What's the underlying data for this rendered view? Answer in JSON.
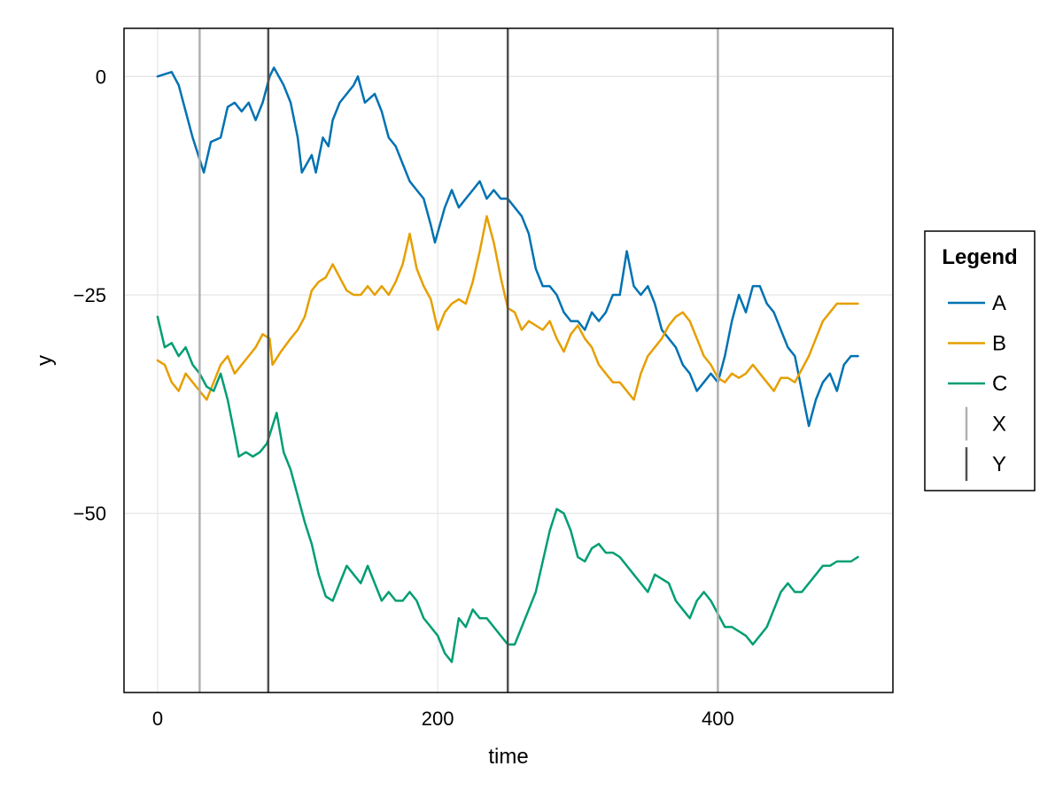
{
  "chart_data": {
    "type": "line",
    "xlabel": "time",
    "ylabel": "y",
    "xlim": [
      -24,
      525
    ],
    "ylim": [
      -70.5,
      5.5
    ],
    "xticks": [
      0,
      200,
      400
    ],
    "yticks": [
      0,
      -25,
      -50
    ],
    "ytick_labels": [
      "0",
      "−25",
      "−50"
    ],
    "grid": true,
    "legend": {
      "title": "Legend",
      "placement": "right",
      "entries": [
        "A",
        "B",
        "C",
        "X",
        "Y"
      ]
    },
    "series": [
      {
        "name": "A",
        "color": "#0072B2",
        "points": [
          [
            0,
            0
          ],
          [
            10,
            0.5
          ],
          [
            15,
            -1
          ],
          [
            20,
            -4
          ],
          [
            25,
            -7
          ],
          [
            30,
            -9.5
          ],
          [
            33,
            -11
          ],
          [
            38,
            -7.5
          ],
          [
            45,
            -7
          ],
          [
            50,
            -3.5
          ],
          [
            55,
            -3
          ],
          [
            60,
            -4
          ],
          [
            65,
            -3
          ],
          [
            70,
            -5
          ],
          [
            75,
            -3
          ],
          [
            80,
            0
          ],
          [
            83,
            1
          ],
          [
            90,
            -1
          ],
          [
            95,
            -3
          ],
          [
            100,
            -7
          ],
          [
            103,
            -11
          ],
          [
            110,
            -9
          ],
          [
            113,
            -11
          ],
          [
            118,
            -7
          ],
          [
            122,
            -8
          ],
          [
            125,
            -5
          ],
          [
            130,
            -3
          ],
          [
            135,
            -2
          ],
          [
            140,
            -1
          ],
          [
            143,
            0
          ],
          [
            148,
            -3
          ],
          [
            155,
            -2
          ],
          [
            160,
            -4
          ],
          [
            165,
            -7
          ],
          [
            170,
            -8
          ],
          [
            175,
            -10
          ],
          [
            180,
            -12
          ],
          [
            185,
            -13
          ],
          [
            190,
            -14
          ],
          [
            195,
            -17
          ],
          [
            198,
            -19
          ],
          [
            205,
            -15
          ],
          [
            210,
            -13
          ],
          [
            215,
            -15
          ],
          [
            220,
            -14
          ],
          [
            225,
            -13
          ],
          [
            230,
            -12
          ],
          [
            235,
            -14
          ],
          [
            240,
            -13
          ],
          [
            245,
            -14
          ],
          [
            250,
            -14
          ],
          [
            255,
            -15
          ],
          [
            260,
            -16
          ],
          [
            265,
            -18
          ],
          [
            270,
            -22
          ],
          [
            275,
            -24
          ],
          [
            280,
            -24
          ],
          [
            285,
            -25
          ],
          [
            290,
            -27
          ],
          [
            295,
            -28
          ],
          [
            300,
            -28
          ],
          [
            305,
            -29
          ],
          [
            310,
            -27
          ],
          [
            315,
            -28
          ],
          [
            320,
            -27
          ],
          [
            325,
            -25
          ],
          [
            330,
            -25
          ],
          [
            335,
            -20
          ],
          [
            340,
            -24
          ],
          [
            345,
            -25
          ],
          [
            350,
            -24
          ],
          [
            355,
            -26
          ],
          [
            360,
            -29
          ],
          [
            365,
            -30
          ],
          [
            370,
            -31
          ],
          [
            375,
            -33
          ],
          [
            380,
            -34
          ],
          [
            385,
            -36
          ],
          [
            390,
            -35
          ],
          [
            395,
            -34
          ],
          [
            400,
            -35
          ],
          [
            405,
            -32
          ],
          [
            410,
            -28
          ],
          [
            415,
            -25
          ],
          [
            420,
            -27
          ],
          [
            425,
            -24
          ],
          [
            430,
            -24
          ],
          [
            435,
            -26
          ],
          [
            440,
            -27
          ],
          [
            445,
            -29
          ],
          [
            450,
            -31
          ],
          [
            455,
            -32
          ],
          [
            460,
            -36
          ],
          [
            465,
            -40
          ],
          [
            470,
            -37
          ],
          [
            475,
            -35
          ],
          [
            480,
            -34
          ],
          [
            485,
            -36
          ],
          [
            490,
            -33
          ],
          [
            495,
            -32
          ],
          [
            500,
            -32
          ]
        ]
      },
      {
        "name": "B",
        "color": "#E69F00",
        "points": [
          [
            0,
            -32.5
          ],
          [
            5,
            -33
          ],
          [
            10,
            -35
          ],
          [
            15,
            -36
          ],
          [
            20,
            -34
          ],
          [
            25,
            -35
          ],
          [
            30,
            -36
          ],
          [
            35,
            -37
          ],
          [
            40,
            -35
          ],
          [
            45,
            -33
          ],
          [
            50,
            -32
          ],
          [
            55,
            -34
          ],
          [
            60,
            -33
          ],
          [
            65,
            -32
          ],
          [
            70,
            -31
          ],
          [
            75,
            -29.5
          ],
          [
            80,
            -30
          ],
          [
            82,
            -33
          ],
          [
            88,
            -31.5
          ],
          [
            95,
            -30
          ],
          [
            100,
            -29
          ],
          [
            105,
            -27.5
          ],
          [
            110,
            -24.5
          ],
          [
            115,
            -23.5
          ],
          [
            120,
            -23
          ],
          [
            125,
            -21.5
          ],
          [
            130,
            -23
          ],
          [
            135,
            -24.5
          ],
          [
            140,
            -25
          ],
          [
            145,
            -25
          ],
          [
            150,
            -24
          ],
          [
            155,
            -25
          ],
          [
            160,
            -24
          ],
          [
            165,
            -25
          ],
          [
            170,
            -23.5
          ],
          [
            175,
            -21.5
          ],
          [
            180,
            -18
          ],
          [
            185,
            -22
          ],
          [
            190,
            -24
          ],
          [
            195,
            -25.5
          ],
          [
            200,
            -29
          ],
          [
            205,
            -27
          ],
          [
            210,
            -26
          ],
          [
            215,
            -25.5
          ],
          [
            220,
            -26
          ],
          [
            225,
            -23.5
          ],
          [
            230,
            -20
          ],
          [
            235,
            -16
          ],
          [
            240,
            -19
          ],
          [
            245,
            -23
          ],
          [
            250,
            -26.5
          ],
          [
            255,
            -27
          ],
          [
            260,
            -29
          ],
          [
            265,
            -28
          ],
          [
            270,
            -28.5
          ],
          [
            275,
            -29
          ],
          [
            280,
            -28
          ],
          [
            285,
            -30
          ],
          [
            290,
            -31.5
          ],
          [
            295,
            -29.5
          ],
          [
            300,
            -28.5
          ],
          [
            305,
            -30
          ],
          [
            310,
            -31
          ],
          [
            315,
            -33
          ],
          [
            320,
            -34
          ],
          [
            325,
            -35
          ],
          [
            330,
            -35
          ],
          [
            335,
            -36
          ],
          [
            340,
            -37
          ],
          [
            345,
            -34
          ],
          [
            350,
            -32
          ],
          [
            355,
            -31
          ],
          [
            360,
            -30
          ],
          [
            365,
            -28.5
          ],
          [
            370,
            -27.5
          ],
          [
            375,
            -27
          ],
          [
            380,
            -28
          ],
          [
            385,
            -30
          ],
          [
            390,
            -32
          ],
          [
            395,
            -33
          ],
          [
            400,
            -34.5
          ],
          [
            405,
            -35
          ],
          [
            410,
            -34
          ],
          [
            415,
            -34.5
          ],
          [
            420,
            -34
          ],
          [
            425,
            -33
          ],
          [
            430,
            -34
          ],
          [
            435,
            -35
          ],
          [
            440,
            -36
          ],
          [
            445,
            -34.5
          ],
          [
            450,
            -34.5
          ],
          [
            455,
            -35
          ],
          [
            460,
            -33.5
          ],
          [
            465,
            -32
          ],
          [
            470,
            -30
          ],
          [
            475,
            -28
          ],
          [
            480,
            -27
          ],
          [
            485,
            -26
          ],
          [
            490,
            -26
          ],
          [
            495,
            -26
          ],
          [
            500,
            -26
          ]
        ]
      },
      {
        "name": "C",
        "color": "#009E73",
        "points": [
          [
            0,
            -27.5
          ],
          [
            5,
            -31
          ],
          [
            10,
            -30.5
          ],
          [
            15,
            -32
          ],
          [
            20,
            -31
          ],
          [
            25,
            -33
          ],
          [
            30,
            -34
          ],
          [
            35,
            -35.5
          ],
          [
            40,
            -36
          ],
          [
            45,
            -34
          ],
          [
            50,
            -37
          ],
          [
            55,
            -41
          ],
          [
            58,
            -43.5
          ],
          [
            63,
            -43
          ],
          [
            68,
            -43.5
          ],
          [
            73,
            -43
          ],
          [
            78,
            -42
          ],
          [
            82,
            -40
          ],
          [
            85,
            -38.5
          ],
          [
            90,
            -43
          ],
          [
            95,
            -45
          ],
          [
            100,
            -48
          ],
          [
            105,
            -51
          ],
          [
            110,
            -53.5
          ],
          [
            115,
            -57
          ],
          [
            120,
            -59.5
          ],
          [
            125,
            -60
          ],
          [
            130,
            -58
          ],
          [
            135,
            -56
          ],
          [
            140,
            -57
          ],
          [
            145,
            -58
          ],
          [
            150,
            -56
          ],
          [
            155,
            -58
          ],
          [
            160,
            -60
          ],
          [
            165,
            -59
          ],
          [
            170,
            -60
          ],
          [
            175,
            -60
          ],
          [
            180,
            -59
          ],
          [
            185,
            -60
          ],
          [
            190,
            -62
          ],
          [
            195,
            -63
          ],
          [
            200,
            -64
          ],
          [
            205,
            -66
          ],
          [
            210,
            -67
          ],
          [
            215,
            -62
          ],
          [
            220,
            -63
          ],
          [
            225,
            -61
          ],
          [
            230,
            -62
          ],
          [
            235,
            -62
          ],
          [
            240,
            -63
          ],
          [
            245,
            -64
          ],
          [
            250,
            -65
          ],
          [
            255,
            -65
          ],
          [
            260,
            -63
          ],
          [
            265,
            -61
          ],
          [
            270,
            -59
          ],
          [
            275,
            -55.5
          ],
          [
            280,
            -52
          ],
          [
            285,
            -49.5
          ],
          [
            290,
            -50
          ],
          [
            295,
            -52
          ],
          [
            300,
            -55
          ],
          [
            305,
            -55.5
          ],
          [
            310,
            -54
          ],
          [
            315,
            -53.5
          ],
          [
            320,
            -54.5
          ],
          [
            325,
            -54.5
          ],
          [
            330,
            -55
          ],
          [
            335,
            -56
          ],
          [
            340,
            -57
          ],
          [
            345,
            -58
          ],
          [
            350,
            -59
          ],
          [
            355,
            -57
          ],
          [
            360,
            -57.5
          ],
          [
            365,
            -58
          ],
          [
            370,
            -60
          ],
          [
            375,
            -61
          ],
          [
            380,
            -62
          ],
          [
            385,
            -60
          ],
          [
            390,
            -59
          ],
          [
            395,
            -60
          ],
          [
            400,
            -61.5
          ],
          [
            405,
            -63
          ],
          [
            410,
            -63
          ],
          [
            415,
            -63.5
          ],
          [
            420,
            -64
          ],
          [
            425,
            -65
          ],
          [
            430,
            -64
          ],
          [
            435,
            -63
          ],
          [
            440,
            -61
          ],
          [
            445,
            -59
          ],
          [
            450,
            -58
          ],
          [
            455,
            -59
          ],
          [
            460,
            -59
          ],
          [
            465,
            -58
          ],
          [
            470,
            -57
          ],
          [
            475,
            -56
          ],
          [
            480,
            -56
          ],
          [
            485,
            -55.5
          ],
          [
            490,
            -55.5
          ],
          [
            495,
            -55.5
          ],
          [
            500,
            -55
          ]
        ]
      }
    ],
    "vlines": [
      {
        "group": "X",
        "color": "#b0b0b0",
        "x": [
          30,
          400
        ]
      },
      {
        "group": "Y",
        "color": "#505050",
        "x": [
          79,
          250
        ]
      }
    ]
  }
}
